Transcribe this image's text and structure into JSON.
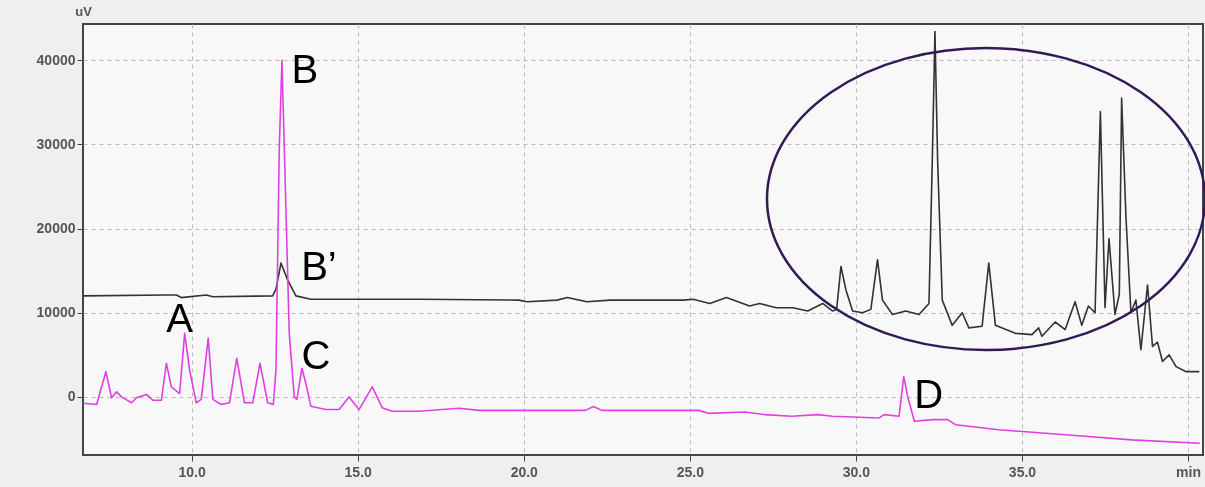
{
  "chart_data": {
    "type": "line",
    "ylabel": "uV",
    "xlim": [
      6.73,
      40.45
    ],
    "ylim": [
      -6900,
      44300
    ],
    "xticks": [
      {
        "value": 10,
        "label": "10.0"
      },
      {
        "value": 15,
        "label": "15.0"
      },
      {
        "value": 20,
        "label": "20.0"
      },
      {
        "value": 25,
        "label": "25.0"
      },
      {
        "value": 30,
        "label": "30.0"
      },
      {
        "value": 35,
        "label": "35.0"
      },
      {
        "value": 40,
        "label": "min"
      }
    ],
    "yticks": [
      0,
      10000,
      20000,
      30000,
      40000
    ],
    "grid": true,
    "annotations": [
      {
        "text": "A",
        "x": 9.79,
        "y": 7550
      },
      {
        "text": "B",
        "x": 12.72,
        "y": 40000
      },
      {
        "text": "B’",
        "x": 12.69,
        "y": 15900
      },
      {
        "text": "C",
        "x": 13.32,
        "y": 3400
      },
      {
        "text": "D",
        "x": 31.44,
        "y": 2400
      }
    ],
    "series": [
      {
        "color": "#333333",
        "x": [
          6.74,
          9.24,
          9.54,
          9.69,
          10.44,
          10.64,
          12.44,
          12.54,
          12.69,
          12.89,
          13.14,
          13.59,
          16.85,
          19.85,
          20.1,
          21.0,
          21.31,
          21.9,
          22.6,
          24.8,
          25.1,
          25.6,
          26.1,
          26.8,
          27.1,
          27.6,
          28.1,
          28.55,
          29.0,
          29.3,
          29.42,
          29.55,
          29.7,
          29.9,
          30.2,
          30.45,
          30.65,
          30.8,
          31.1,
          31.5,
          31.9,
          32.2,
          32.3,
          32.38,
          32.46,
          32.6,
          32.9,
          33.2,
          33.4,
          33.8,
          34.0,
          34.2,
          34.8,
          35.3,
          35.5,
          35.6,
          36.0,
          36.3,
          36.6,
          36.8,
          37.0,
          37.2,
          37.36,
          37.5,
          37.62,
          37.8,
          37.93,
          38.0,
          38.13,
          38.28,
          38.43,
          38.58,
          38.78,
          38.93,
          39.08,
          39.23,
          39.43,
          39.64,
          39.94,
          40.34
        ],
        "values": [
          12000,
          12100,
          12100,
          11800,
          12100,
          11900,
          12000,
          12800,
          15900,
          13900,
          12000,
          11600,
          11600,
          11500,
          11300,
          11500,
          11800,
          11300,
          11500,
          11500,
          11600,
          11100,
          11800,
          10800,
          11100,
          10600,
          10600,
          10200,
          11100,
          10200,
          10400,
          15500,
          12700,
          10200,
          10000,
          10400,
          16300,
          11500,
          9800,
          10200,
          9800,
          11100,
          28100,
          43400,
          28100,
          11500,
          8500,
          10000,
          8200,
          8400,
          15900,
          8500,
          7550,
          7400,
          8200,
          7200,
          8900,
          8000,
          11300,
          8500,
          10800,
          10000,
          33900,
          10600,
          18800,
          9800,
          12200,
          35500,
          21400,
          10000,
          11500,
          5600,
          13300,
          6000,
          6500,
          4200,
          5000,
          3600,
          3000,
          3000
        ]
      },
      {
        "color": "#e040e0",
        "x": [
          6.74,
          7.14,
          7.42,
          7.59,
          7.74,
          7.89,
          8.19,
          8.34,
          8.64,
          8.84,
          9.09,
          9.24,
          9.39,
          9.64,
          9.79,
          9.94,
          10.14,
          10.29,
          10.5,
          10.64,
          10.89,
          11.14,
          11.36,
          11.59,
          11.84,
          12.06,
          12.29,
          12.46,
          12.54,
          12.64,
          12.72,
          12.79,
          12.84,
          12.94,
          13.09,
          13.17,
          13.32,
          13.44,
          13.59,
          14.04,
          14.44,
          14.74,
          15.04,
          15.44,
          15.74,
          16.04,
          16.85,
          18.05,
          18.65,
          21.85,
          22.1,
          22.35,
          25.26,
          25.56,
          26.66,
          27.26,
          28.06,
          28.86,
          29.3,
          30.7,
          30.85,
          31.3,
          31.44,
          31.56,
          31.76,
          32.31,
          32.76,
          33.0,
          34.3,
          36.3,
          38.3,
          40.35
        ],
        "values": [
          -750,
          -900,
          3000,
          -100,
          600,
          0,
          -700,
          -100,
          300,
          -400,
          -400,
          4000,
          1200,
          400,
          7550,
          3200,
          -700,
          -300,
          6960,
          -300,
          -900,
          -700,
          4600,
          -700,
          -700,
          4000,
          -700,
          -900,
          3200,
          29700,
          40000,
          29700,
          22200,
          7550,
          0,
          -300,
          3400,
          1600,
          -1100,
          -1500,
          -1500,
          0,
          -1500,
          1200,
          -1300,
          -1700,
          -1700,
          -1350,
          -1600,
          -1600,
          -1150,
          -1600,
          -1600,
          -1950,
          -1800,
          -2100,
          -2300,
          -2100,
          -2300,
          -2500,
          -2100,
          -2300,
          2400,
          0,
          -2900,
          -2700,
          -2700,
          -3300,
          -3900,
          -4500,
          -5100,
          -5500
        ]
      }
    ]
  }
}
